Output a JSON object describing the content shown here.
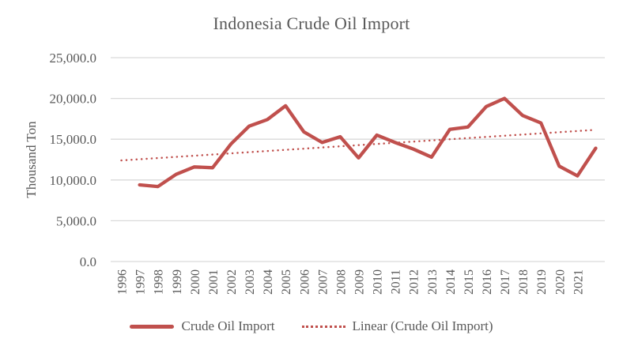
{
  "colors": {
    "series": "#C0504D",
    "trendline": "#C0504D",
    "grid": "#D9D9D9",
    "text": "#595959"
  },
  "chart_data": {
    "type": "line",
    "title": "Indonesia Crude Oil Import",
    "ylabel": "Thousand Ton",
    "xlabel": "",
    "ylim": [
      0,
      25000
    ],
    "ytick_interval": 5000,
    "y_tick_labels": [
      "0.0",
      "5,000.0",
      "10,000.0",
      "15,000.0",
      "20,000.0",
      "25,000.0"
    ],
    "categories": [
      "1996",
      "1997",
      "1998",
      "1999",
      "2000",
      "2001",
      "2002",
      "2003",
      "2004",
      "2005",
      "2006",
      "2007",
      "2008",
      "2009",
      "2010",
      "2011",
      "2012",
      "2013",
      "2014",
      "2015",
      "2016",
      "2017",
      "2018",
      "2019",
      "2020",
      "2021"
    ],
    "series": [
      {
        "name": "Crude Oil Import",
        "style": "solid",
        "values": [
          9400,
          9200,
          10700,
          11600,
          11500,
          14400,
          16600,
          17400,
          19100,
          15900,
          14600,
          15300,
          12700,
          15500,
          14600,
          13800,
          12800,
          16200,
          16500,
          19000,
          20000,
          17900,
          17000,
          11700,
          10500,
          13900
        ]
      },
      {
        "name": "Linear (Crude Oil Import)",
        "style": "dotted",
        "trend_start_value": 12400,
        "trend_end_value": 16150
      }
    ],
    "layout_hints": {
      "grid": "horizontal-only",
      "legend_position": "bottom",
      "x_labels_rotated": 90,
      "n_slots": 27,
      "series_slot_offset": 1,
      "trendline_spans_slots": [
        0,
        26
      ]
    }
  }
}
